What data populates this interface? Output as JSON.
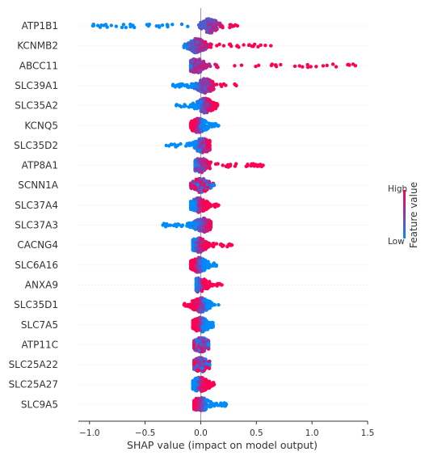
{
  "chart_data": {
    "type": "scatter",
    "title": "",
    "xlabel": "SHAP value (impact on model output)",
    "ylabel": "",
    "xlim": [
      -1.1,
      1.5
    ],
    "xticks": [
      -1.0,
      -0.5,
      0.0,
      0.5,
      1.0,
      1.5
    ],
    "xtick_labels": [
      "−1.0",
      "−0.5",
      "0.0",
      "0.5",
      "1.0",
      "1.5"
    ],
    "grid": false,
    "colorbar": {
      "title": "Feature value",
      "high_label": "High",
      "low_label": "Low",
      "placement": "right",
      "low_color": "#008bfb",
      "high_color": "#ff0052"
    },
    "features": [
      {
        "name": "ATP1B1",
        "min": -0.97,
        "max": 0.33,
        "center": 0.08,
        "skew": "left-low"
      },
      {
        "name": "KCNMB2",
        "min": -0.15,
        "max": 0.63,
        "center": -0.03,
        "skew": "right-high"
      },
      {
        "name": "ABCC11",
        "min": -0.09,
        "max": 1.39,
        "center": -0.04,
        "skew": "right-high"
      },
      {
        "name": "SLC39A1",
        "min": -0.25,
        "max": 0.32,
        "center": 0.04,
        "skew": "left-low"
      },
      {
        "name": "SLC35A2",
        "min": -0.22,
        "max": 0.15,
        "center": 0.04,
        "skew": "left-low"
      },
      {
        "name": "KCNQ5",
        "min": -0.09,
        "max": 0.16,
        "center": -0.02,
        "skew": "right-low"
      },
      {
        "name": "SLC35D2",
        "min": -0.31,
        "max": 0.08,
        "center": 0.02,
        "skew": "left-low"
      },
      {
        "name": "ATP8A1",
        "min": -0.05,
        "max": 0.56,
        "center": 0.0,
        "skew": "right-high"
      },
      {
        "name": "SCNN1A",
        "min": -0.09,
        "max": 0.12,
        "center": 0.0,
        "skew": "mixed"
      },
      {
        "name": "SLC37A4",
        "min": -0.09,
        "max": 0.16,
        "center": -0.02,
        "skew": "right-high"
      },
      {
        "name": "SLC37A3",
        "min": -0.34,
        "max": 0.09,
        "center": 0.02,
        "skew": "left-low"
      },
      {
        "name": "CACNG4",
        "min": -0.07,
        "max": 0.28,
        "center": -0.02,
        "skew": "right-high"
      },
      {
        "name": "SLC6A16",
        "min": -0.09,
        "max": 0.14,
        "center": -0.02,
        "skew": "right-low"
      },
      {
        "name": "ANXA9",
        "min": -0.04,
        "max": 0.19,
        "center": -0.01,
        "skew": "right-high"
      },
      {
        "name": "SLC35D1",
        "min": -0.15,
        "max": 0.16,
        "center": 0.0,
        "skew": "left-high"
      },
      {
        "name": "SLC7A5",
        "min": -0.07,
        "max": 0.11,
        "center": 0.0,
        "skew": "right-low"
      },
      {
        "name": "ATP11C",
        "min": -0.06,
        "max": 0.07,
        "center": 0.0,
        "skew": "mixed"
      },
      {
        "name": "SLC25A22",
        "min": -0.06,
        "max": 0.08,
        "center": 0.0,
        "skew": "mixed"
      },
      {
        "name": "SLC25A27",
        "min": -0.07,
        "max": 0.12,
        "center": -0.01,
        "skew": "right-high"
      },
      {
        "name": "SLC9A5",
        "min": -0.06,
        "max": 0.23,
        "center": 0.0,
        "skew": "right-low"
      }
    ]
  }
}
